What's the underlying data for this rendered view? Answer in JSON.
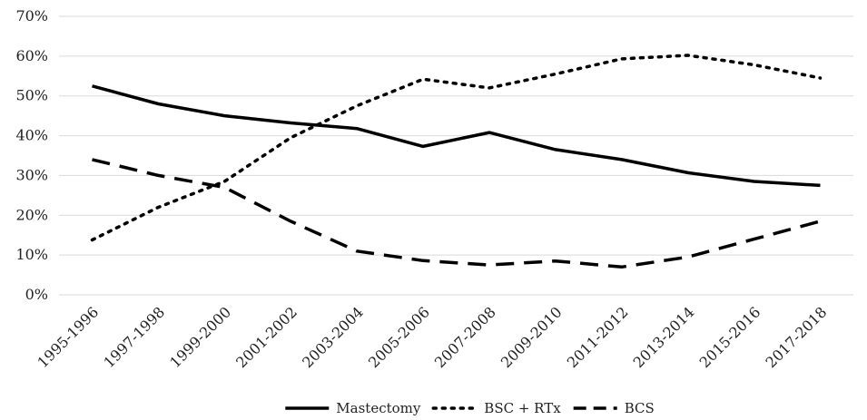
{
  "chart_data": {
    "type": "line",
    "categories": [
      "1995-1996",
      "1997-1998",
      "1999-2000",
      "2001-2002",
      "2003-2004",
      "2005-2006",
      "2007-2008",
      "2009-2010",
      "2011-2012",
      "2013-2014",
      "2015-2016",
      "2017-2018"
    ],
    "series": [
      {
        "name": "Mastectomy",
        "style": "solid",
        "values": [
          52.5,
          48.0,
          45.0,
          43.2,
          41.8,
          37.3,
          40.8,
          36.5,
          34.0,
          30.7,
          28.5,
          27.5
        ]
      },
      {
        "name": "BSC + RTx",
        "style": "dotted",
        "values": [
          13.8,
          22.0,
          28.5,
          39.5,
          47.5,
          54.2,
          52.0,
          55.5,
          59.3,
          60.2,
          57.8,
          54.5
        ]
      },
      {
        "name": "BCS",
        "style": "dashed",
        "values": [
          34.0,
          30.0,
          27.0,
          18.5,
          11.0,
          8.6,
          7.5,
          8.5,
          7.0,
          9.5,
          14.0,
          18.5
        ]
      }
    ],
    "ylim": [
      0,
      70
    ],
    "yticks": [
      0,
      10,
      20,
      30,
      40,
      50,
      60,
      70
    ],
    "ytick_labels": [
      "0%",
      "10%",
      "20%",
      "30%",
      "40%",
      "50%",
      "60%",
      "70%"
    ],
    "grid": true,
    "legend_position": "bottom",
    "line_color": "#000000",
    "grid_color": "#d9d9d9"
  }
}
